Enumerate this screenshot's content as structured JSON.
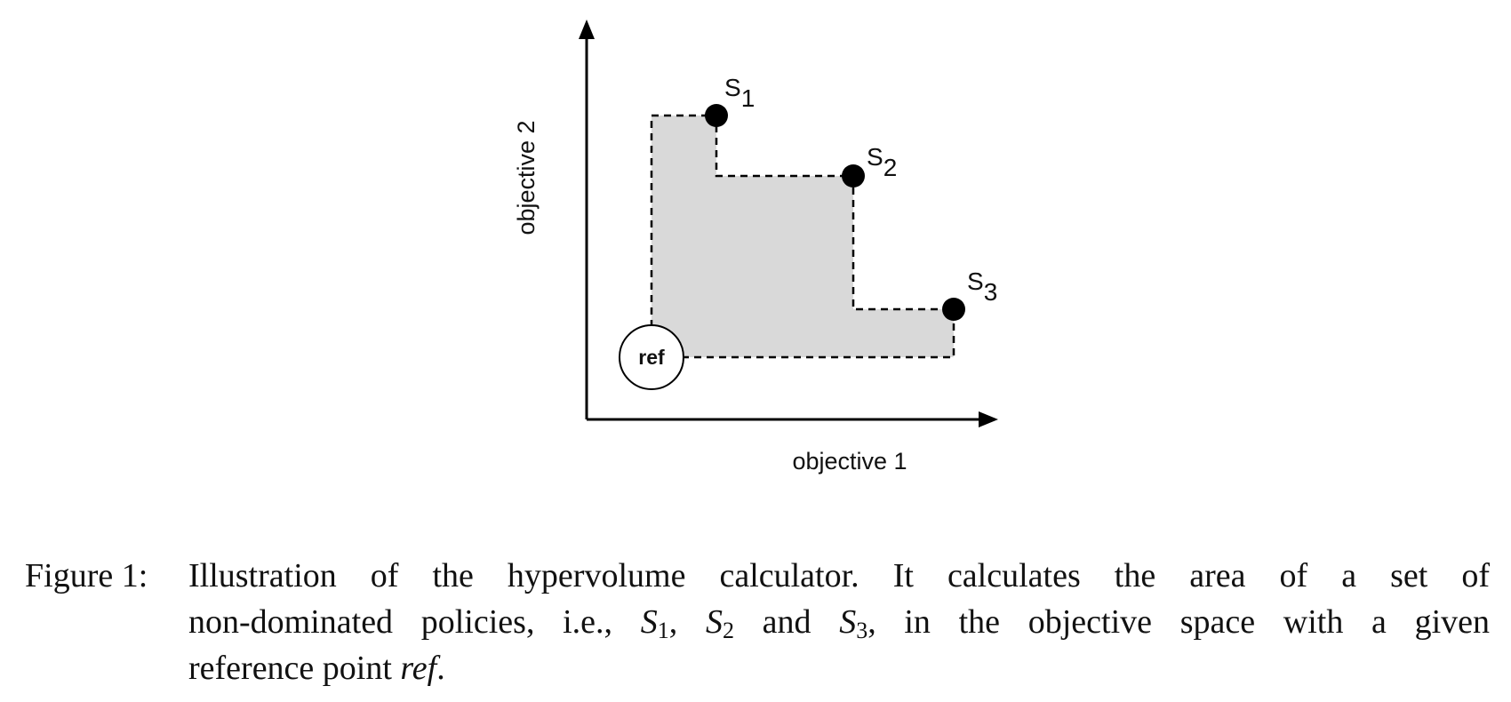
{
  "diagram": {
    "xlabel": "objective 1",
    "ylabel": "objective 2",
    "ref_label": "ref",
    "points": [
      {
        "letter": "S",
        "sub": "1"
      },
      {
        "letter": "S",
        "sub": "2"
      },
      {
        "letter": "S",
        "sub": "3"
      }
    ],
    "colors": {
      "region_fill": "#d9d9d9",
      "ink": "#000000",
      "background": "#ffffff"
    }
  },
  "caption": {
    "figure_number": "Figure 1:",
    "line1": "Illustration of the hypervolume calculator.  It calculates the area of a set of",
    "line2_a": "non-dominated policies, i.e., ",
    "s1_letter": "S",
    "s1_sub": "1",
    "sep1": ", ",
    "s2_letter": "S",
    "s2_sub": "2",
    "sep2": " and ",
    "s3_letter": "S",
    "s3_sub": "3",
    "line2_b": ", in the objective space with a given",
    "line3_a": "reference point ",
    "line3_ref": "ref",
    "line3_end": "."
  }
}
